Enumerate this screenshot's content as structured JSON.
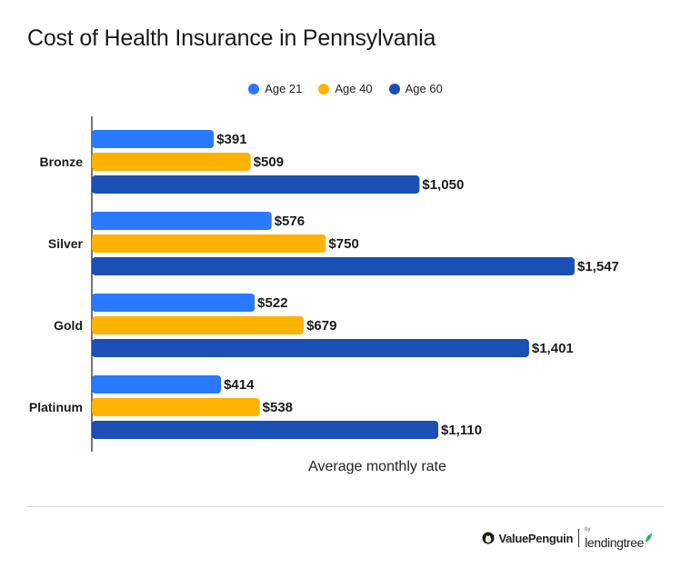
{
  "title": "Cost of Health Insurance in Pennsylvania",
  "colors": {
    "age21": "#2979ff",
    "age40": "#ffb300",
    "age60": "#1a4fb3"
  },
  "footer": {
    "brand1": "ValuePenguin",
    "brand2_prefix": "by",
    "brand2": "lendingtree"
  },
  "chart_data": {
    "type": "bar",
    "orientation": "horizontal",
    "categories": [
      "Bronze",
      "Silver",
      "Gold",
      "Platinum"
    ],
    "series": [
      {
        "name": "Age 21",
        "values": [
          391,
          576,
          522,
          414
        ],
        "labels": [
          "$391",
          "$576",
          "$522",
          "$414"
        ]
      },
      {
        "name": "Age 40",
        "values": [
          509,
          750,
          679,
          538
        ],
        "labels": [
          "$509",
          "$750",
          "$679",
          "$538"
        ]
      },
      {
        "name": "Age 60",
        "values": [
          1050,
          1547,
          1401,
          1110
        ],
        "labels": [
          "$1,050",
          "$1,547",
          "$1,401",
          "$1,110"
        ]
      }
    ],
    "title": "Cost of Health Insurance in Pennsylvania",
    "xlabel": "Average monthly rate",
    "ylabel": "",
    "xlim": [
      0,
      1800
    ],
    "grid": false,
    "legend": "top-center"
  }
}
